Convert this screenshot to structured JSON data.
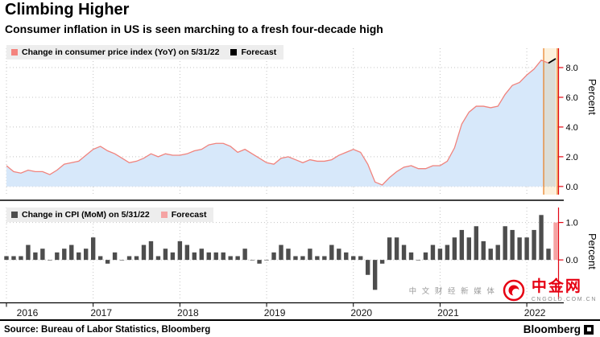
{
  "header": {
    "title": "Climbing Higher",
    "subtitle": "Consumer inflation in US is seen marching to a fresh four-decade high"
  },
  "x_axis": {
    "year_labels": [
      "2016",
      "2017",
      "2018",
      "2019",
      "2020",
      "2021",
      "2022"
    ]
  },
  "chart_data": [
    {
      "type": "area",
      "name": "cpi_yoy",
      "legend": [
        {
          "label": "Change in consumer price index (YoY) on 5/31/22",
          "color": "#f4837d"
        },
        {
          "label": "Forecast",
          "color": "#000000"
        }
      ],
      "ylabel": "Percent",
      "yticks": [
        0.0,
        2.0,
        4.0,
        6.0,
        8.0
      ],
      "ylim": [
        -0.55,
        9.3
      ],
      "x_monthly_start": "2016-01",
      "x_monthly_end": "2022-05",
      "forecast_count": 1,
      "values": [
        1.4,
        1.0,
        0.9,
        1.1,
        1.0,
        1.0,
        0.8,
        1.1,
        1.5,
        1.6,
        1.7,
        2.1,
        2.5,
        2.7,
        2.4,
        2.2,
        1.9,
        1.6,
        1.7,
        1.9,
        2.2,
        2.0,
        2.2,
        2.1,
        2.1,
        2.2,
        2.4,
        2.5,
        2.8,
        2.9,
        2.9,
        2.7,
        2.3,
        2.5,
        2.2,
        1.9,
        1.6,
        1.5,
        1.9,
        2.0,
        1.8,
        1.6,
        1.8,
        1.7,
        1.7,
        1.8,
        2.1,
        2.3,
        2.5,
        2.3,
        1.5,
        0.3,
        0.1,
        0.6,
        1.0,
        1.3,
        1.4,
        1.2,
        1.2,
        1.4,
        1.4,
        1.7,
        2.6,
        4.2,
        5.0,
        5.4,
        5.4,
        5.3,
        5.4,
        6.2,
        6.8,
        7.0,
        7.5,
        7.9,
        8.5,
        8.3,
        8.6
      ],
      "line_color": "#f0837d",
      "area_fill": "#d7e8fa",
      "forecast_line_color": "#000000",
      "band_fill": "#f5a623",
      "band_edge": "#e87c1e",
      "axis_color": "#e30613"
    },
    {
      "type": "bar",
      "name": "cpi_mom",
      "legend": [
        {
          "label": "Change in CPI (MoM) on 5/31/22",
          "color": "#4d4d4d"
        },
        {
          "label": "Forecast",
          "color": "#f5a3a3"
        }
      ],
      "ylabel": "Percent",
      "yticks": [
        0.0,
        1.0
      ],
      "ylim": [
        -1.05,
        1.4
      ],
      "x_monthly_start": "2016-01",
      "x_monthly_end": "2022-05",
      "forecast_count": 1,
      "values": [
        0.1,
        0.1,
        0.1,
        0.4,
        0.2,
        0.3,
        0.0,
        0.2,
        0.3,
        0.4,
        0.2,
        0.3,
        0.6,
        0.1,
        -0.1,
        0.2,
        0.0,
        0.1,
        0.1,
        0.4,
        0.5,
        0.1,
        0.3,
        0.2,
        0.5,
        0.4,
        0.2,
        0.3,
        0.2,
        0.2,
        0.2,
        0.1,
        0.1,
        0.3,
        0.0,
        -0.1,
        0.0,
        0.2,
        0.4,
        0.3,
        0.1,
        0.1,
        0.3,
        0.1,
        0.1,
        0.4,
        0.3,
        0.2,
        0.1,
        0.1,
        -0.4,
        -0.8,
        -0.1,
        0.6,
        0.6,
        0.4,
        0.2,
        0.0,
        0.2,
        0.4,
        0.3,
        0.4,
        0.6,
        0.8,
        0.6,
        0.9,
        0.5,
        0.3,
        0.4,
        0.9,
        0.8,
        0.6,
        0.6,
        0.8,
        1.2,
        0.3,
        1.0
      ],
      "bar_color": "#4d4d4d",
      "forecast_bar_color": "#f5a3a3",
      "axis_color": "#e30613"
    }
  ],
  "footer": {
    "source": "Source: Bureau of Labor Statistics, Bloomberg",
    "brand": "Bloomberg"
  },
  "watermark": {
    "tagline": "中 文 财 经 新 媒 体",
    "brand": "中金网",
    "domain": "CNGOLD.COM.CN"
  }
}
